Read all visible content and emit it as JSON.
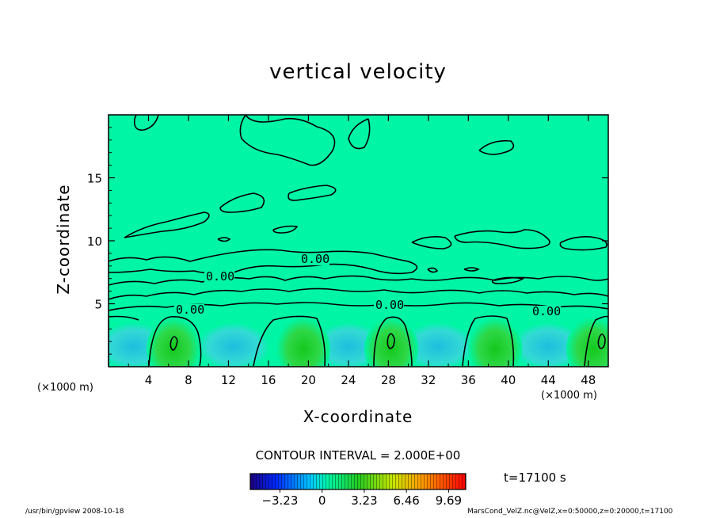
{
  "chart_data": {
    "type": "heatmap",
    "title": "vertical velocity",
    "xlabel": "X-coordinate",
    "ylabel": "Z-coordinate",
    "x_unit_left": "(×1000 m)",
    "x_unit_right": "(×1000 m)",
    "xlim": [
      0,
      50
    ],
    "ylim": [
      0,
      20
    ],
    "x_ticks": [
      "4",
      "8",
      "12",
      "16",
      "20",
      "24",
      "28",
      "32",
      "36",
      "40",
      "44",
      "48"
    ],
    "y_ticks": [
      "5",
      "10",
      "15"
    ],
    "contour_interval_text": "CONTOUR INTERVAL = 2.000E+00",
    "contour_labels": [
      "0.00",
      "0.00",
      "0.00",
      "0.00",
      "0.00"
    ],
    "colorbar_ticks": [
      "−3.23",
      "0",
      "3.23",
      "6.46",
      "9.69"
    ],
    "colorbar_range": [
      -5.5,
      11.0
    ],
    "time_text": "t=17100 s",
    "updrafts_center_x": [
      6.5,
      19.5,
      28.3,
      38.7,
      48.5
    ],
    "downdrafts_center_x": [
      2.5,
      12.5,
      24.0,
      33.0,
      44.0
    ],
    "colors": {
      "background_field": "#00f5a5",
      "updraft": "#1ed83a",
      "downdraft": "#26bde6",
      "contour": "#000000"
    }
  },
  "footer": {
    "left": "/usr/bin/gpview   2008-10-18",
    "right": "MarsCond_VelZ.nc@VelZ,x=0:50000,z=0:20000,t=17100"
  }
}
